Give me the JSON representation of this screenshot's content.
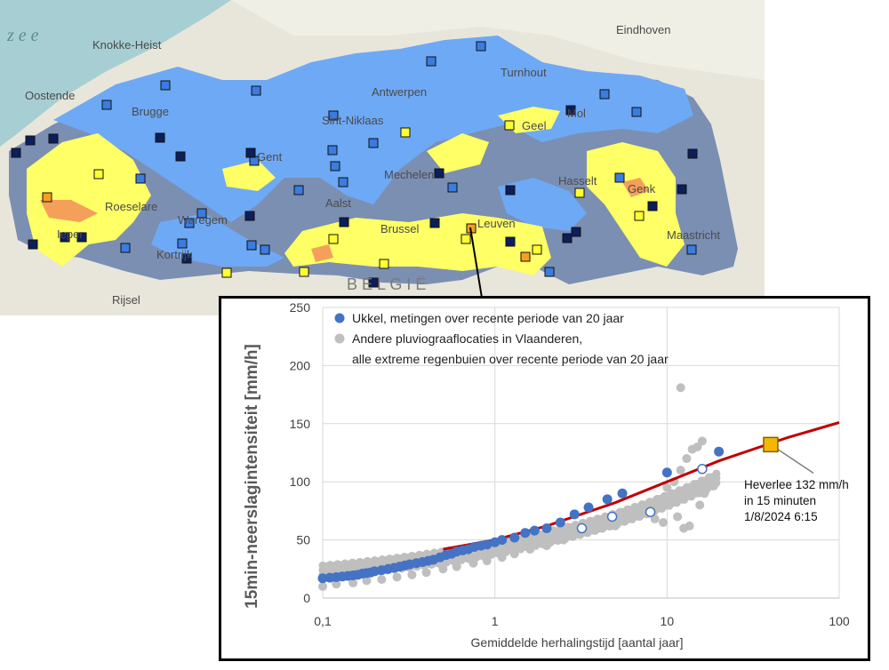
{
  "map": {
    "sea_label": "z e e",
    "country_label": "B E L G I Ë",
    "cities": [
      {
        "name": "Knokke-Heist"
      },
      {
        "name": "Oostende"
      },
      {
        "name": "Brugge"
      },
      {
        "name": "Antwerpen"
      },
      {
        "name": "Turnhout"
      },
      {
        "name": "Eindhoven"
      },
      {
        "name": "Sint-Niklaas"
      },
      {
        "name": "Gent"
      },
      {
        "name": "Mechelen"
      },
      {
        "name": "Geel"
      },
      {
        "name": "Mol"
      },
      {
        "name": "Roeselare"
      },
      {
        "name": "Waregem"
      },
      {
        "name": "Aalst"
      },
      {
        "name": "Hasselt"
      },
      {
        "name": "Genk"
      },
      {
        "name": "Brussel"
      },
      {
        "name": "Leuven"
      },
      {
        "name": "Ieper"
      },
      {
        "name": "Kortrijk"
      },
      {
        "name": "Maastricht"
      },
      {
        "name": "Rijsel"
      }
    ]
  },
  "colors": {
    "sea": "#a7cfd3",
    "land": "#e8e6da",
    "zone_light_blue": "#6ea9f5",
    "zone_dark_blue": "#7b8fb3",
    "zone_yellow": "#ffff66",
    "zone_orange": "#f5a05a",
    "ukkel_series": "#4472c4",
    "other_series": "#bfbfbf",
    "fit_line": "#c00000",
    "highlight": "#f5b800"
  },
  "chart_data": {
    "type": "scatter",
    "x_scale": "log",
    "xlim": [
      0.1,
      100
    ],
    "ylim": [
      0,
      250
    ],
    "x_ticks": [
      "0,1",
      "1",
      "10",
      "100"
    ],
    "y_ticks": [
      "0",
      "50",
      "100",
      "150",
      "200",
      "250"
    ],
    "xlabel": "Gemiddelde herhalingstijd [aantal jaar]",
    "ylabel": "15min-neerslagintensiteit [mm/h]",
    "grid": true,
    "legend_position": "top-left",
    "legend": [
      {
        "label": "Ukkel, metingen over recente periode van 20 jaar"
      },
      {
        "label": "Andere pluviograaflocaties in Vlaanderen,"
      },
      {
        "label": "alle extreme regenbuien over recente periode van 20 jaar"
      }
    ],
    "series": [
      {
        "name": "Ukkel, metingen over recente periode van 20 jaar",
        "x": [
          0.1,
          0.11,
          0.12,
          0.13,
          0.14,
          0.15,
          0.16,
          0.17,
          0.18,
          0.19,
          0.2,
          0.22,
          0.24,
          0.26,
          0.28,
          0.3,
          0.32,
          0.35,
          0.38,
          0.41,
          0.44,
          0.48,
          0.52,
          0.56,
          0.6,
          0.65,
          0.7,
          0.76,
          0.83,
          0.9,
          1.0,
          1.1,
          1.3,
          1.5,
          1.7,
          2.0,
          2.4,
          2.9,
          3.5,
          4.5,
          5.5,
          10,
          20
        ],
        "y": [
          17,
          17.5,
          18,
          18.5,
          19,
          19.5,
          20,
          21,
          21.5,
          22,
          23,
          24,
          25,
          26,
          27,
          28,
          29,
          30,
          31,
          32,
          33,
          35,
          37,
          38,
          40,
          41,
          42,
          44,
          45,
          46,
          48,
          50,
          52,
          56,
          58,
          60,
          65,
          72,
          78,
          85,
          90,
          108,
          126
        ],
        "hollow_x": [
          3.2,
          4.8,
          8.0,
          16.0
        ],
        "hollow_y": [
          60,
          70,
          74,
          111
        ]
      },
      {
        "name": "Andere pluviograaflocaties in Vlaanderen, alle extreme regenbuien over recente periode van 20 jaar",
        "x": [
          0.1,
          0.12,
          0.15,
          0.18,
          0.22,
          0.27,
          0.33,
          0.4,
          0.5,
          0.6,
          0.75,
          0.9,
          1.1,
          1.3,
          1.6,
          2.0,
          2.5,
          3.0,
          4.0,
          5.0,
          6.0,
          7.0,
          8.0,
          9.0,
          10.0,
          11.0,
          12.0,
          13.0,
          14.0,
          15.0,
          16.0,
          11.5,
          12.5,
          8.5,
          9.5,
          15.5,
          16.5,
          13.5,
          6.5,
          12.0
        ],
        "y": [
          10,
          12,
          13,
          15,
          16,
          18,
          20,
          22,
          25,
          27,
          30,
          32,
          35,
          38,
          42,
          45,
          50,
          55,
          60,
          62,
          70,
          75,
          80,
          85,
          95,
          100,
          110,
          120,
          128,
          130,
          135,
          70,
          60,
          68,
          65,
          80,
          90,
          62,
          72,
          181
        ]
      },
      {
        "name": "fit",
        "x": [
          0.5,
          1,
          2,
          5,
          10,
          20,
          50,
          100
        ],
        "y": [
          42,
          50,
          62,
          82,
          100,
          118,
          138,
          151
        ]
      }
    ],
    "annotation": {
      "x": 40,
      "y": 132,
      "lines": [
        "Heverlee 132 mm/h",
        "in 15 minuten",
        "1/8/2024 6:15"
      ]
    }
  }
}
